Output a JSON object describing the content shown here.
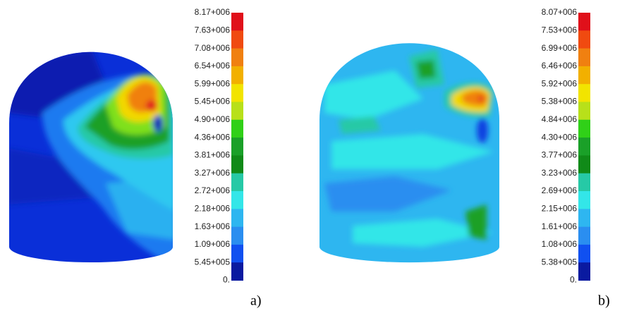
{
  "panels": [
    {
      "legend": [
        "8.17+006",
        "7.63+006",
        "7.08+006",
        "6.54+006",
        "5.99+006",
        "5.45+006",
        "4.90+006",
        "4.36+006",
        "3.81+006",
        "3.27+006",
        "2.72+006",
        "2.18+006",
        "1.63+006",
        "1.09+006",
        "5.45+005",
        "0."
      ],
      "label": "a)"
    },
    {
      "legend": [
        "8.07+006",
        "7.53+006",
        "6.99+006",
        "6.46+006",
        "5.92+006",
        "5.38+006",
        "4.84+006",
        "4.30+006",
        "3.77+006",
        "3.23+006",
        "2.69+006",
        "2.15+006",
        "1.61+006",
        "1.08+006",
        "5.38+005",
        "0."
      ],
      "label": "b)"
    }
  ]
}
